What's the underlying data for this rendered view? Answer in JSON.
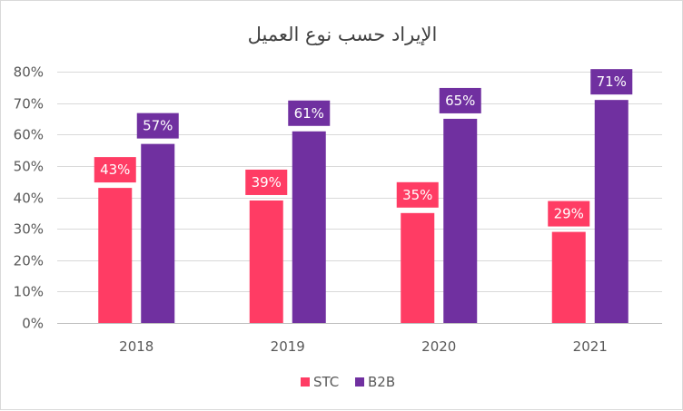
{
  "chart_data": {
    "type": "bar",
    "title": "الإيراد حسب نوع العميل",
    "categories": [
      "2018",
      "2019",
      "2020",
      "2021"
    ],
    "series": [
      {
        "name": "STC",
        "color": "#ff3c64",
        "values": [
          43,
          39,
          35,
          29
        ],
        "labels": [
          "43%",
          "39%",
          "35%",
          "29%"
        ]
      },
      {
        "name": "B2B",
        "color": "#7030a0",
        "values": [
          57,
          61,
          65,
          71
        ],
        "labels": [
          "57%",
          "61%",
          "65%",
          "71%"
        ]
      }
    ],
    "ylim": [
      0,
      80
    ],
    "yticks": [
      0,
      10,
      20,
      30,
      40,
      50,
      60,
      70,
      80
    ],
    "ytick_labels": [
      "0%",
      "10%",
      "20%",
      "30%",
      "40%",
      "50%",
      "60%",
      "70%",
      "80%"
    ],
    "grid": true,
    "legend_position": "bottom"
  }
}
